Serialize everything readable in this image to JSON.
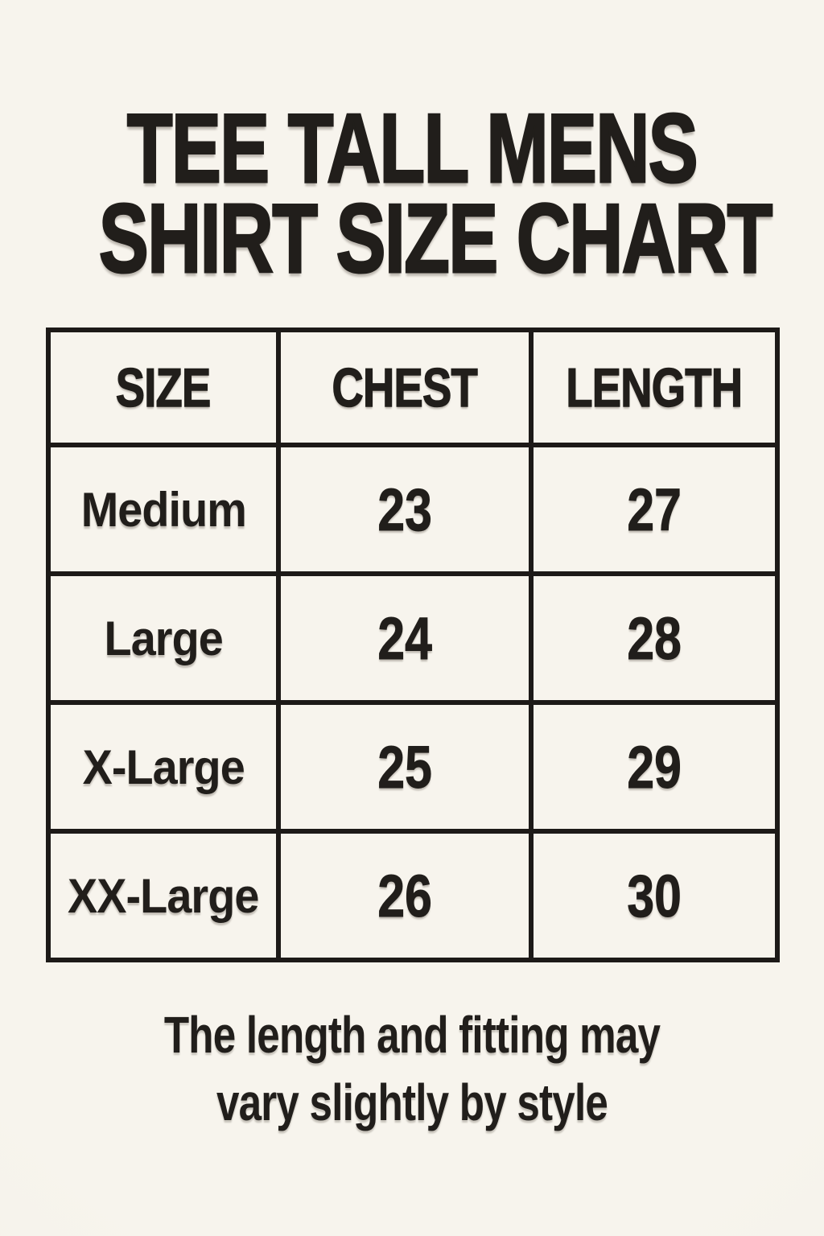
{
  "title": {
    "line1": "TEE TALL MENS",
    "line2": "SHIRT SIZE CHART"
  },
  "table": {
    "headers": {
      "size": "SIZE",
      "chest": "CHEST",
      "length": "LENGTH"
    },
    "rows": [
      {
        "size": "Medium",
        "chest": "23",
        "length": "27"
      },
      {
        "size": "Large",
        "chest": "24",
        "length": "28"
      },
      {
        "size": "X-Large",
        "chest": "25",
        "length": "29"
      },
      {
        "size": "XX-Large",
        "chest": "26",
        "length": "30"
      }
    ]
  },
  "footnote": {
    "line1": "The length and fitting may",
    "line2": "vary slightly by style"
  },
  "colors": {
    "background": "#f6f3ec",
    "ink": "#211e1b",
    "table_border": "#1d1a18"
  },
  "chart_data": {
    "type": "table",
    "title": "TEE TALL MENS SHIRT SIZE CHART",
    "columns": [
      "SIZE",
      "CHEST",
      "LENGTH"
    ],
    "rows": [
      [
        "Medium",
        23,
        27
      ],
      [
        "Large",
        24,
        28
      ],
      [
        "X-Large",
        25,
        29
      ],
      [
        "XX-Large",
        26,
        30
      ]
    ],
    "footnote": "The length and fitting may vary slightly by style"
  }
}
